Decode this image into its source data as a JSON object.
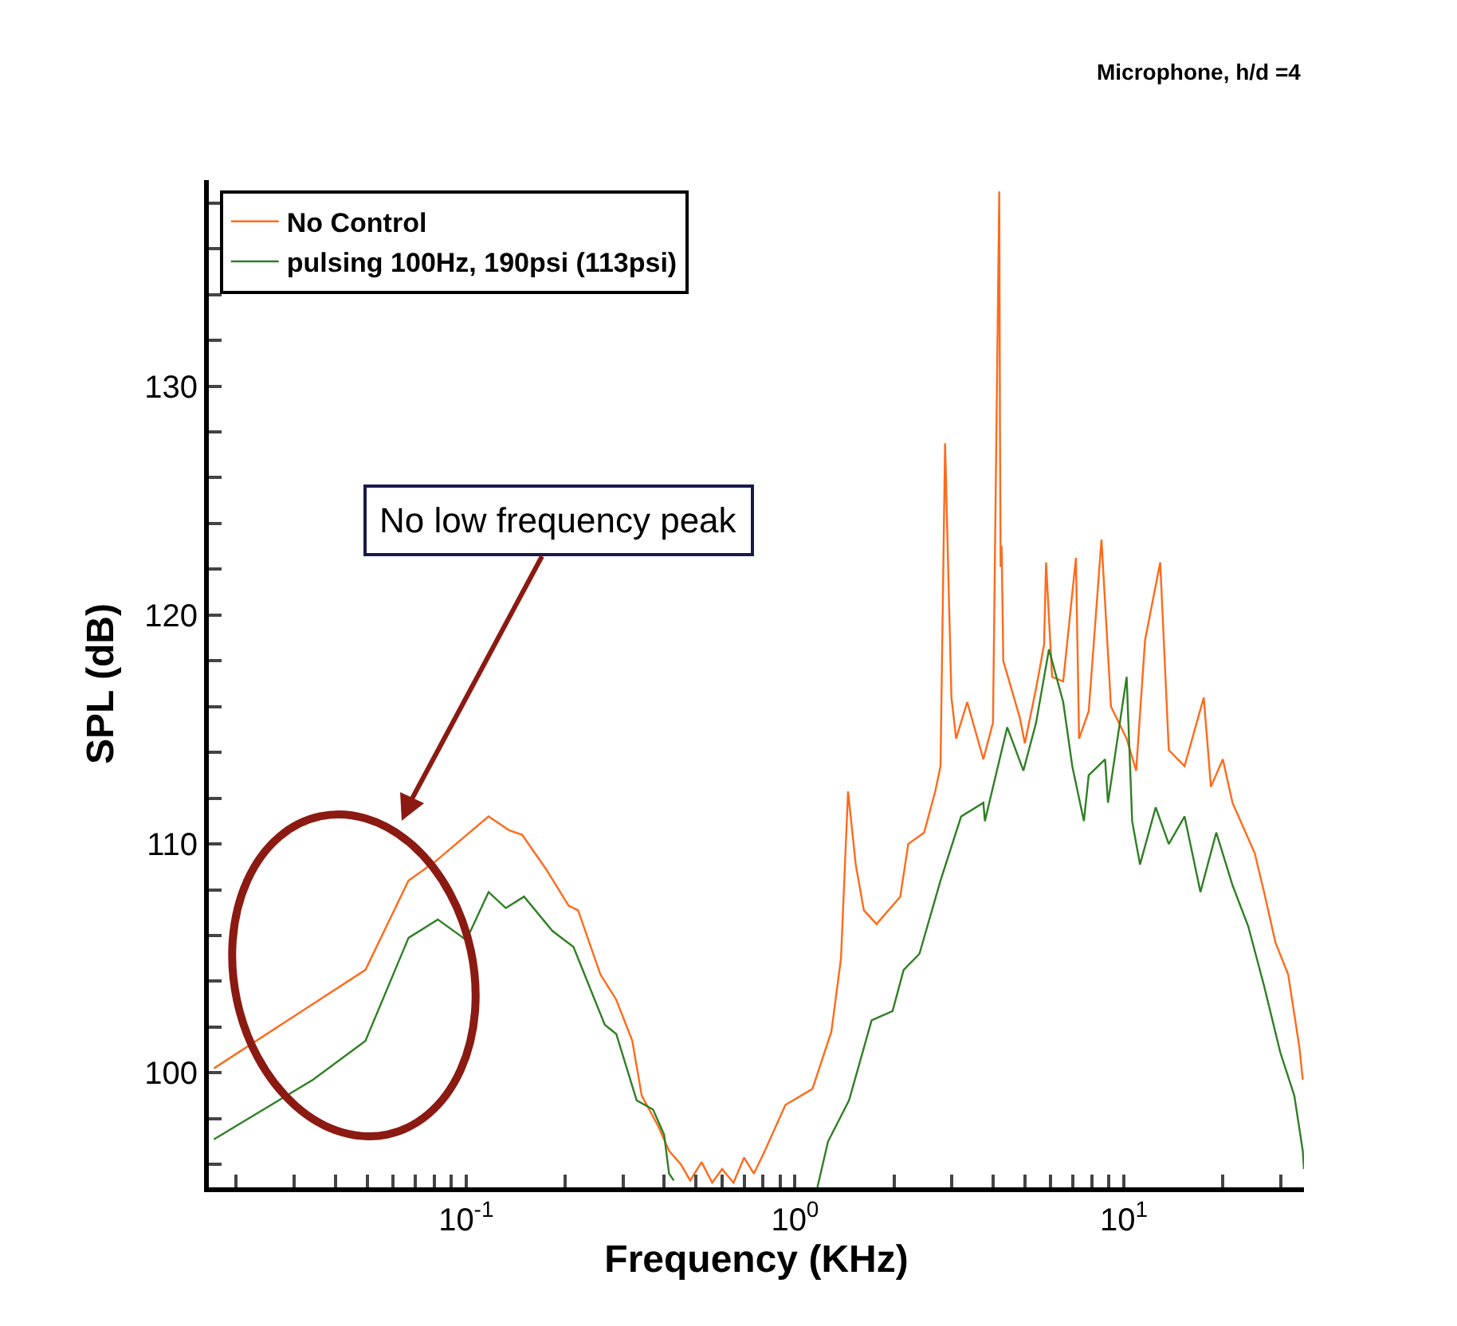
{
  "chart_data": {
    "type": "line",
    "xlabel": "Frequency (KHz)",
    "ylabel": "SPL (dB)",
    "log": "x",
    "grid": false,
    "legend": "top left",
    "marker": "none",
    "line_style": "solid",
    "xlim": [
      0.0165,
      35.3
    ],
    "ylim": [
      95,
      139
    ],
    "xticks": [
      {
        "value": 0.02,
        "label": null
      },
      {
        "value": 0.03,
        "label": null
      },
      {
        "value": 0.04,
        "label": null
      },
      {
        "value": 0.05,
        "label": null
      },
      {
        "value": 0.06,
        "label": null
      },
      {
        "value": 0.07,
        "label": null
      },
      {
        "value": 0.08,
        "label": null
      },
      {
        "value": 0.09,
        "label": null
      },
      {
        "value": 0.1,
        "label": "10$^{-1}$"
      },
      {
        "value": 0.2,
        "label": null
      },
      {
        "value": 0.3,
        "label": null
      },
      {
        "value": 0.4,
        "label": null
      },
      {
        "value": 0.5,
        "label": null
      },
      {
        "value": 0.6,
        "label": null
      },
      {
        "value": 0.7,
        "label": null
      },
      {
        "value": 0.8,
        "label": null
      },
      {
        "value": 0.9,
        "label": null
      },
      {
        "value": 1,
        "label": "10$^{0}$"
      },
      {
        "value": 2,
        "label": null
      },
      {
        "value": 3,
        "label": null
      },
      {
        "value": 4,
        "label": null
      },
      {
        "value": 5,
        "label": null
      },
      {
        "value": 6,
        "label": null
      },
      {
        "value": 7,
        "label": null
      },
      {
        "value": 8,
        "label": null
      },
      {
        "value": 9,
        "label": null
      },
      {
        "value": 10,
        "label": "10$^{1}$"
      },
      {
        "value": 20,
        "label": null
      },
      {
        "value": 30,
        "label": null
      }
    ],
    "yticks": [
      {
        "value": 96,
        "label": null
      },
      {
        "value": 98,
        "label": null
      },
      100,
      {
        "value": 102,
        "label": null
      },
      {
        "value": 104,
        "label": null
      },
      {
        "value": 106,
        "label": null
      },
      {
        "value": 108,
        "label": null
      },
      110,
      {
        "value": 112,
        "label": null
      },
      {
        "value": 114,
        "label": null
      },
      {
        "value": 116,
        "label": null
      },
      {
        "value": 118,
        "label": null
      },
      120,
      {
        "value": 122,
        "label": null
      },
      {
        "value": 124,
        "label": null
      },
      {
        "value": 126,
        "label": null
      },
      {
        "value": 128,
        "label": null
      },
      130,
      {
        "value": 132,
        "label": null
      },
      {
        "value": 134,
        "label": null
      },
      {
        "value": 136,
        "label": null
      },
      {
        "value": 138,
        "label": null
      }
    ],
    "series": [
      {
        "name": "No Control",
        "color": "#ff6a1a",
        "x": [
          0.0171,
          0.0494,
          0.0668,
          0.08,
          0.117,
          0.135,
          0.148,
          0.175,
          0.205,
          0.219,
          0.256,
          0.286,
          0.32,
          0.342,
          0.383,
          0.414,
          0.45,
          0.48,
          0.52,
          0.56,
          0.6,
          0.65,
          0.7,
          0.75,
          0.81,
          0.935,
          1.13,
          1.29,
          1.38,
          1.45,
          1.53,
          1.62,
          1.77,
          2.09,
          2.21,
          2.47,
          2.67,
          2.77,
          2.86,
          2.99,
          3.09,
          3.34,
          3.74,
          4.0,
          4.18,
          4.2,
          4.22,
          4.25,
          4.3,
          4.83,
          5.0,
          5.41,
          5.72,
          5.8,
          6.05,
          6.54,
          7.15,
          7.31,
          7.82,
          8.55,
          9.14,
          10.2,
          10.9,
          11.6,
          12.9,
          13.7,
          15.3,
          17.5,
          18.4,
          20.0,
          21.4,
          25.0,
          26.7,
          28.9,
          31.6,
          34.2,
          35.0
        ],
        "values": [
          100.2,
          104.5,
          108.4,
          109.2,
          111.2,
          110.6,
          110.4,
          108.9,
          107.3,
          107.1,
          104.3,
          103.2,
          101.4,
          99.0,
          97.7,
          96.6,
          96.0,
          95.3,
          96.1,
          95.2,
          95.8,
          95.2,
          96.3,
          95.6,
          96.6,
          98.6,
          99.3,
          101.8,
          105.0,
          112.3,
          109.1,
          107.1,
          106.5,
          107.7,
          110.0,
          110.5,
          112.3,
          113.4,
          127.5,
          116.4,
          114.6,
          116.2,
          113.7,
          115.3,
          138.5,
          128.3,
          122.1,
          123.0,
          118.0,
          115.5,
          114.4,
          116.8,
          118.7,
          122.3,
          117.3,
          117.1,
          122.5,
          114.6,
          115.8,
          123.3,
          116.0,
          114.6,
          113.2,
          118.9,
          122.3,
          114.1,
          113.4,
          116.4,
          112.5,
          113.7,
          111.8,
          109.6,
          107.9,
          105.7,
          104.3,
          101.1,
          99.7
        ]
      },
      {
        "name": "pulsing 100Hz, 190psi (113psi)",
        "color": "#2f7f24",
        "x": [
          0.0171,
          0.0342,
          0.0494,
          0.0668,
          0.082,
          0.1001,
          0.117,
          0.132,
          0.15,
          0.183,
          0.212,
          0.264,
          0.286,
          0.33,
          0.37,
          0.4,
          0.414,
          0.428,
          0.8,
          1.17,
          1.26,
          1.46,
          1.71,
          1.98,
          2.14,
          2.39,
          2.77,
          3.2,
          3.74,
          3.78,
          4.42,
          4.95,
          5.41,
          5.92,
          6.54,
          6.97,
          7.56,
          7.82,
          8.77,
          8.95,
          10.2,
          10.6,
          11.2,
          12.5,
          13.7,
          15.3,
          17.1,
          19.1,
          21.4,
          23.9,
          26.7,
          29.9,
          33.0,
          35.0,
          35.3
        ],
        "values": [
          97.1,
          99.7,
          101.4,
          105.9,
          106.7,
          105.8,
          107.9,
          107.2,
          107.7,
          106.2,
          105.5,
          102.1,
          101.7,
          98.8,
          98.4,
          97.3,
          95.6,
          95.3,
          null,
          95.0,
          97.0,
          98.8,
          102.3,
          102.7,
          104.5,
          105.2,
          108.4,
          111.2,
          111.8,
          111.0,
          115.1,
          113.2,
          115.3,
          118.5,
          116.2,
          113.4,
          111.0,
          113.0,
          113.7,
          111.8,
          117.3,
          111.0,
          109.1,
          111.6,
          110.0,
          111.2,
          107.9,
          110.5,
          108.2,
          106.4,
          103.8,
          100.9,
          99.0,
          96.6,
          95.8
        ]
      }
    ],
    "annotations": [
      "No low frequency peak",
      "Microphone, h/d =4"
    ]
  }
}
